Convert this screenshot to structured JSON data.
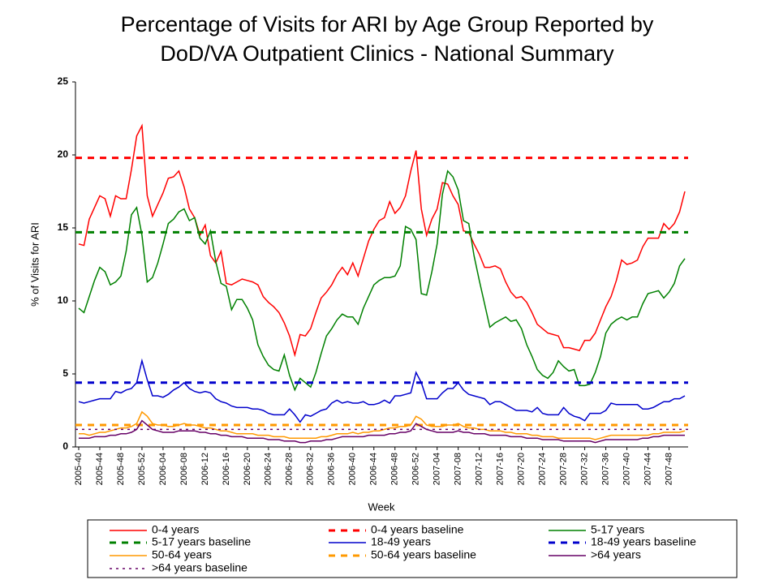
{
  "chart_data": {
    "type": "line",
    "title": [
      "Percentage of Visits for ARI by Age Group Reported by",
      "DoD/VA Outpatient Clinics - National Summary"
    ],
    "y_label": "% of Visits for ARI",
    "x_label": "Week",
    "ylim": [
      0,
      25
    ],
    "yticks": [
      0,
      5,
      10,
      15,
      20,
      25
    ],
    "categories": [
      "2005-40",
      null,
      null,
      null,
      "2005-44",
      null,
      null,
      null,
      "2005-48",
      null,
      null,
      null,
      "2005-52",
      null,
      null,
      null,
      "2006-04",
      null,
      null,
      null,
      "2006-08",
      null,
      null,
      null,
      "2006-12",
      null,
      null,
      null,
      "2006-16",
      null,
      null,
      null,
      "2006-20",
      null,
      null,
      null,
      "2006-24",
      null,
      null,
      null,
      "2006-28",
      null,
      null,
      null,
      "2006-32",
      null,
      null,
      null,
      "2006-36",
      null,
      null,
      null,
      "2006-40",
      null,
      null,
      null,
      "2006-44",
      null,
      null,
      null,
      "2006-48",
      null,
      null,
      null,
      "2006-52",
      null,
      null,
      null,
      "2007-04",
      null,
      null,
      null,
      "2007-08",
      null,
      null,
      null,
      "2007-12",
      null,
      null,
      null,
      "2007-16",
      null,
      null,
      null,
      "2007-20",
      null,
      null,
      null,
      "2007-24",
      null,
      null,
      null,
      "2007-28",
      null,
      null,
      null,
      "2007-32",
      null,
      null,
      null,
      "2007-36",
      null,
      null,
      null,
      "2007-40",
      null,
      null,
      null,
      "2007-44",
      null,
      null,
      null,
      "2007-48",
      null,
      null,
      null
    ],
    "series": [
      {
        "name": "0-4 years",
        "color": "#ff0000",
        "values": [
          13.9,
          13.8,
          15.6,
          16.4,
          17.2,
          17.0,
          15.8,
          17.2,
          17.0,
          17.0,
          19.0,
          21.3,
          22.0,
          17.2,
          15.8,
          16.6,
          17.4,
          18.4,
          18.5,
          18.9,
          17.8,
          16.3,
          15.7,
          14.5,
          15.2,
          13.1,
          12.6,
          13.4,
          11.2,
          11.1,
          11.3,
          11.5,
          11.4,
          11.3,
          11.1,
          10.3,
          9.9,
          9.6,
          9.2,
          8.5,
          7.6,
          6.3,
          7.7,
          7.6,
          8.1,
          9.2,
          10.2,
          10.6,
          11.1,
          11.8,
          12.3,
          11.8,
          12.6,
          11.7,
          12.9,
          14.1,
          14.9,
          15.5,
          15.7,
          16.8,
          16.0,
          16.4,
          17.2,
          18.9,
          20.3,
          16.3,
          14.5,
          15.6,
          16.3,
          18.1,
          18.0,
          17.2,
          16.6,
          14.8,
          14.7,
          13.9,
          13.2,
          12.3,
          12.3,
          12.4,
          12.2,
          11.3,
          10.6,
          10.2,
          10.3,
          9.9,
          9.2,
          8.4,
          8.1,
          7.8,
          7.7,
          7.6,
          6.8,
          6.8,
          6.7,
          6.6,
          7.3,
          7.3,
          7.8,
          8.7,
          9.6,
          10.3,
          11.4,
          12.8,
          12.5,
          12.6,
          12.8,
          13.7,
          14.3,
          14.3,
          14.3,
          15.3,
          14.9,
          15.3,
          16.1,
          17.5
        ]
      },
      {
        "name": "0-4 years baseline",
        "color": "#ff0000",
        "dash": "dashed",
        "value": 19.8
      },
      {
        "name": "5-17 years",
        "color": "#008000",
        "values": [
          9.5,
          9.2,
          10.3,
          11.4,
          12.3,
          12,
          11.1,
          11.3,
          11.7,
          13.4,
          15.9,
          16.4,
          14.5,
          11.3,
          11.6,
          12.6,
          13.9,
          15.3,
          15.6,
          16.1,
          16.3,
          15.5,
          15.7,
          14.3,
          13.9,
          14.8,
          12.7,
          11.2,
          11,
          9.4,
          10.1,
          10.1,
          9.5,
          8.7,
          7,
          6.2,
          5.6,
          5.3,
          5.2,
          6.3,
          4.9,
          3.9,
          4.7,
          4.4,
          4.1,
          5.1,
          6.4,
          7.6,
          8.1,
          8.7,
          9.1,
          8.9,
          8.9,
          8.4,
          9.5,
          10.3,
          11.1,
          11.4,
          11.6,
          11.6,
          11.7,
          12.4,
          15.1,
          14.9,
          14.2,
          10.5,
          10.4,
          12,
          13.9,
          17.3,
          18.9,
          18.5,
          17.6,
          15.5,
          15.3,
          13.1,
          11.4,
          9.8,
          8.2,
          8.5,
          8.7,
          8.9,
          8.6,
          8.7,
          8.1,
          7,
          6.2,
          5.3,
          4.9,
          4.7,
          5.1,
          5.9,
          5.5,
          5.2,
          5.3,
          4.2,
          4.2,
          4.3,
          5.1,
          6.2,
          7.8,
          8.4,
          8.7,
          8.9,
          8.7,
          8.9,
          8.9,
          9.8,
          10.5,
          10.6,
          10.7,
          10.2,
          10.6,
          11.2,
          12.4,
          12.9
        ]
      },
      {
        "name": "5-17 years baseline",
        "color": "#008000",
        "dash": "dashed",
        "value": 14.7
      },
      {
        "name": "18-49 years",
        "color": "#0000cc",
        "values": [
          3.1,
          3.0,
          3.1,
          3.2,
          3.3,
          3.3,
          3.3,
          3.8,
          3.7,
          3.9,
          4.0,
          4.4,
          5.9,
          4.6,
          3.5,
          3.5,
          3.4,
          3.6,
          3.9,
          4.1,
          4.4,
          4.0,
          3.8,
          3.7,
          3.8,
          3.7,
          3.3,
          3.1,
          3.0,
          2.8,
          2.7,
          2.7,
          2.7,
          2.6,
          2.6,
          2.5,
          2.3,
          2.2,
          2.2,
          2.2,
          2.6,
          2.2,
          1.7,
          2.2,
          2.1,
          2.3,
          2.5,
          2.6,
          3.0,
          3.2,
          3.0,
          3.1,
          3.0,
          3.0,
          3.1,
          2.9,
          2.9,
          3.0,
          3.2,
          3.0,
          3.5,
          3.5,
          3.6,
          3.7,
          5.1,
          4.4,
          3.3,
          3.3,
          3.3,
          3.7,
          4.0,
          4.0,
          4.4,
          3.9,
          3.6,
          3.5,
          3.4,
          3.3,
          2.9,
          3.1,
          3.1,
          2.9,
          2.7,
          2.5,
          2.5,
          2.5,
          2.4,
          2.7,
          2.3,
          2.2,
          2.2,
          2.2,
          2.7,
          2.3,
          2.1,
          2.0,
          1.8,
          2.3,
          2.3,
          2.3,
          2.5,
          3.0,
          2.9,
          2.9,
          2.9,
          2.9,
          2.9,
          2.6,
          2.6,
          2.7,
          2.9,
          3.1,
          3.1,
          3.3,
          3.3,
          3.5
        ]
      },
      {
        "name": "18-49 years baseline",
        "color": "#0000cc",
        "dash": "dashed",
        "value": 4.4
      },
      {
        "name": "50-64 years",
        "color": "#ff9900",
        "values": [
          0.9,
          0.9,
          0.8,
          0.9,
          1.0,
          1.0,
          1.1,
          1.2,
          1.3,
          1.3,
          1.4,
          1.6,
          2.4,
          2.1,
          1.6,
          1.5,
          1.5,
          1.4,
          1.4,
          1.5,
          1.6,
          1.5,
          1.5,
          1.4,
          1.3,
          1.3,
          1.2,
          1.1,
          1.1,
          1.0,
          0.9,
          0.9,
          0.9,
          0.9,
          0.8,
          0.8,
          0.8,
          0.7,
          0.7,
          0.7,
          0.6,
          0.6,
          0.6,
          0.6,
          0.6,
          0.6,
          0.7,
          0.7,
          0.8,
          0.9,
          0.9,
          0.9,
          1.0,
          0.9,
          1.0,
          1.0,
          1.1,
          1.1,
          1.2,
          1.3,
          1.3,
          1.4,
          1.4,
          1.5,
          2.1,
          1.9,
          1.5,
          1.4,
          1.4,
          1.4,
          1.5,
          1.5,
          1.6,
          1.4,
          1.3,
          1.3,
          1.2,
          1.2,
          1.1,
          1.1,
          1.1,
          1.0,
          1.0,
          0.9,
          0.9,
          0.9,
          0.8,
          0.8,
          0.7,
          0.7,
          0.7,
          0.6,
          0.6,
          0.6,
          0.6,
          0.6,
          0.6,
          0.6,
          0.5,
          0.6,
          0.7,
          0.8,
          0.8,
          0.8,
          0.8,
          0.8,
          0.8,
          0.8,
          0.8,
          0.9,
          0.9,
          1.0,
          1.0,
          1.0,
          1.0,
          1.1
        ]
      },
      {
        "name": "50-64 years baseline",
        "color": "#ff9900",
        "dash": "dashed",
        "value": 1.5
      },
      {
        "name": ">64 years",
        "color": "#660066",
        "values": [
          0.6,
          0.6,
          0.6,
          0.7,
          0.7,
          0.7,
          0.8,
          0.8,
          0.9,
          0.9,
          1.0,
          1.2,
          1.8,
          1.5,
          1.2,
          1.1,
          1.0,
          1.0,
          1.0,
          1.1,
          1.1,
          1.1,
          1.1,
          1.0,
          1.0,
          0.9,
          0.9,
          0.8,
          0.8,
          0.7,
          0.7,
          0.7,
          0.6,
          0.6,
          0.6,
          0.6,
          0.5,
          0.5,
          0.5,
          0.4,
          0.4,
          0.4,
          0.3,
          0.3,
          0.4,
          0.4,
          0.4,
          0.5,
          0.5,
          0.6,
          0.7,
          0.7,
          0.7,
          0.7,
          0.7,
          0.8,
          0.8,
          0.8,
          0.8,
          0.9,
          0.9,
          1.0,
          1.0,
          1.1,
          1.6,
          1.4,
          1.2,
          1.1,
          1.0,
          1.0,
          1.0,
          1.0,
          1.1,
          1.0,
          1.0,
          0.9,
          0.9,
          0.9,
          0.8,
          0.8,
          0.8,
          0.8,
          0.7,
          0.7,
          0.7,
          0.6,
          0.6,
          0.6,
          0.5,
          0.5,
          0.5,
          0.5,
          0.4,
          0.4,
          0.4,
          0.4,
          0.4,
          0.4,
          0.3,
          0.4,
          0.5,
          0.5,
          0.5,
          0.5,
          0.5,
          0.5,
          0.5,
          0.6,
          0.6,
          0.7,
          0.7,
          0.8,
          0.8,
          0.8,
          0.8,
          0.8
        ]
      },
      {
        "name": ">64 years baseline",
        "color": "#660066",
        "dash": "dotted",
        "value": 1.2
      }
    ]
  }
}
